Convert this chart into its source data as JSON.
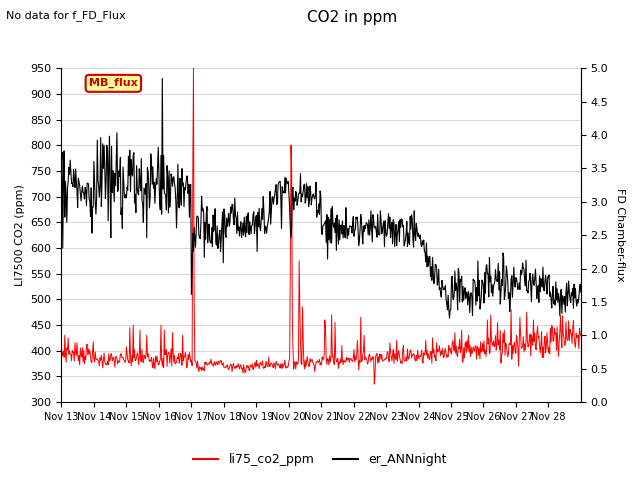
{
  "title": "CO2 in ppm",
  "top_left_text": "No data for f_FD_Flux",
  "ylabel_left": "LI7500 CO2 (ppm)",
  "ylabel_right": "FD Chamber-flux",
  "ylim_left": [
    300,
    950
  ],
  "ylim_right": [
    0.0,
    5.0
  ],
  "yticks_left": [
    300,
    350,
    400,
    450,
    500,
    550,
    600,
    650,
    700,
    750,
    800,
    850,
    900,
    950
  ],
  "yticks_right": [
    0.0,
    0.5,
    1.0,
    1.5,
    2.0,
    2.5,
    3.0,
    3.5,
    4.0,
    4.5,
    5.0
  ],
  "xtick_labels": [
    "Nov 13",
    "Nov 14",
    "Nov 15",
    "Nov 16",
    "Nov 17",
    "Nov 18",
    "Nov 19",
    "Nov 20",
    "Nov 21",
    "Nov 22",
    "Nov 23",
    "Nov 24",
    "Nov 25",
    "Nov 26",
    "Nov 27",
    "Nov 28"
  ],
  "legend_box_label": "MB_flux",
  "legend_box_color": "#cc0000",
  "legend_box_bg": "#ffff99",
  "line1_color": "#ff0000",
  "line1_label": "li75_co2_ppm",
  "line2_color": "#000000",
  "line2_label": "er_ANNnight",
  "grid_color": "#d0d0d0",
  "background_color": "#ffffff",
  "figsize": [
    6.4,
    4.8
  ],
  "dpi": 100
}
